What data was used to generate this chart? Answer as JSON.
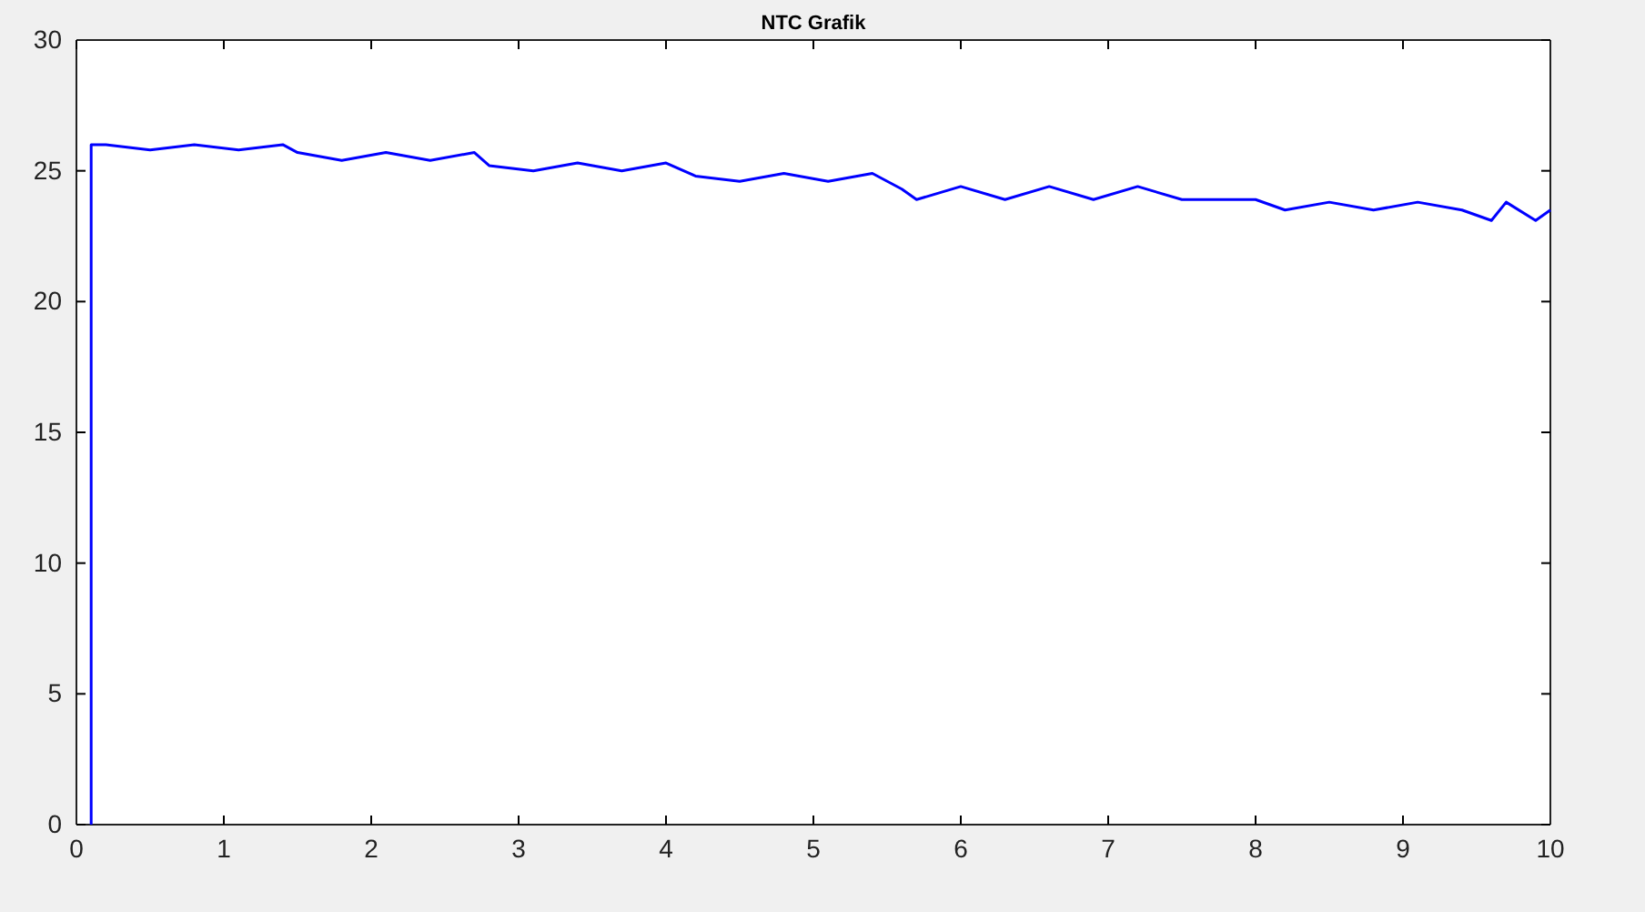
{
  "chart_data": {
    "type": "line",
    "title": "NTC Grafik",
    "x": [
      0.1,
      0.1,
      0.2,
      0.5,
      0.8,
      1.1,
      1.4,
      1.5,
      1.8,
      2.1,
      2.4,
      2.7,
      2.8,
      3.1,
      3.4,
      3.7,
      4.0,
      4.2,
      4.5,
      4.8,
      5.1,
      5.4,
      5.6,
      5.7,
      6.0,
      6.3,
      6.6,
      6.9,
      7.2,
      7.5,
      7.6,
      8.0,
      8.2,
      8.5,
      8.8,
      9.1,
      9.4,
      9.6,
      9.7,
      9.9,
      10
    ],
    "series": [
      {
        "color": "#0000ff",
        "values": [
          0,
          26,
          26,
          25.8,
          26,
          25.8,
          26,
          25.7,
          25.4,
          25.7,
          25.4,
          25.7,
          25.2,
          25.0,
          25.3,
          25.0,
          25.3,
          24.8,
          24.6,
          24.9,
          24.6,
          24.9,
          24.3,
          23.9,
          24.4,
          23.9,
          24.4,
          23.9,
          24.4,
          23.9,
          23.9,
          23.9,
          23.5,
          23.8,
          23.5,
          23.8,
          23.5,
          23.1,
          23.8,
          23.1,
          23.5
        ]
      }
    ],
    "xlim": [
      0,
      10
    ],
    "xticks": [
      0,
      1,
      2,
      3,
      4,
      5,
      6,
      7,
      8,
      9,
      10
    ],
    "ylim": [
      0,
      30
    ],
    "yticks": [
      0,
      5,
      10,
      15,
      20,
      25,
      30
    ],
    "grid": false,
    "marker": "none",
    "line_style": "solid"
  }
}
